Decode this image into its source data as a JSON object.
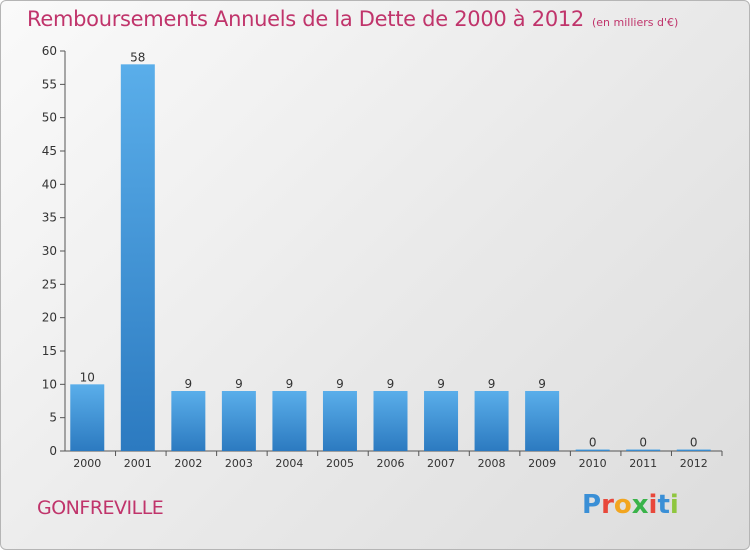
{
  "title": "Remboursements Annuels de la Dette de 2000 à 2012",
  "unit": "(en milliers d'€)",
  "commune": "GONFREVILLE",
  "logo": {
    "text": "Proxiti",
    "colors": [
      "#3a8fd6",
      "#e8483b",
      "#f2a51f",
      "#3ab34a",
      "#e8483b",
      "#3a8fd6",
      "#8fc63f"
    ]
  },
  "chart_data": {
    "type": "bar",
    "categories": [
      "2000",
      "2001",
      "2002",
      "2003",
      "2004",
      "2005",
      "2006",
      "2007",
      "2008",
      "2009",
      "2010",
      "2011",
      "2012"
    ],
    "values": [
      10,
      58,
      9,
      9,
      9,
      9,
      9,
      9,
      9,
      9,
      0,
      0,
      0
    ],
    "data_labels": [
      "10",
      "58",
      "9",
      "9",
      "9",
      "9",
      "9",
      "9",
      "9",
      "9",
      "0",
      "0",
      "0"
    ],
    "ylim": [
      0,
      60
    ],
    "yticks": [
      0,
      5,
      10,
      15,
      20,
      25,
      30,
      35,
      40,
      45,
      50,
      55,
      60
    ],
    "grid": false,
    "bar_color": "#4a9ee0"
  }
}
